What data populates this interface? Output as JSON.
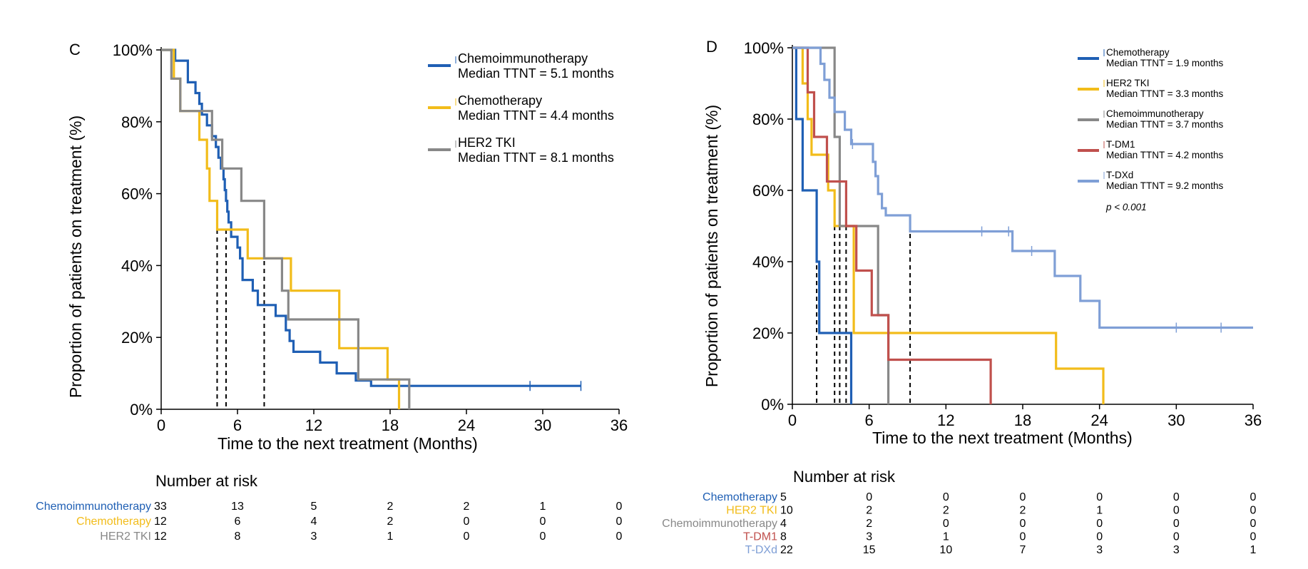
{
  "chart_data": [
    {
      "panel": "C",
      "type": "line",
      "title": "",
      "xlabel": "Time to the next treatment (Months)",
      "ylabel": "Proportion of patients on treatment (%)",
      "xlim": [
        0,
        36
      ],
      "ylim": [
        0,
        100
      ],
      "x_ticks": [
        "0",
        "6",
        "12",
        "18",
        "24",
        "30",
        "36"
      ],
      "y_ticks": [
        "0%",
        "20%",
        "40%",
        "60%",
        "80%",
        "100%"
      ],
      "legend_position": "top-right",
      "series": [
        {
          "name": "Chemoimmunotherapy",
          "median_label": "Median TTNT = 5.1 months",
          "median": 5.1,
          "color": "#1f5fb4",
          "steps": [
            [
              0,
              100
            ],
            [
              1.1,
              100
            ],
            [
              1.1,
              97
            ],
            [
              2.1,
              97
            ],
            [
              2.1,
              91
            ],
            [
              2.7,
              91
            ],
            [
              2.7,
              88
            ],
            [
              3.0,
              88
            ],
            [
              3.0,
              85
            ],
            [
              3.2,
              85
            ],
            [
              3.2,
              82
            ],
            [
              3.6,
              82
            ],
            [
              3.6,
              79
            ],
            [
              4.0,
              79
            ],
            [
              4.0,
              76
            ],
            [
              4.3,
              76
            ],
            [
              4.3,
              73
            ],
            [
              4.5,
              73
            ],
            [
              4.5,
              70
            ],
            [
              4.7,
              70
            ],
            [
              4.7,
              67
            ],
            [
              4.9,
              67
            ],
            [
              4.9,
              64
            ],
            [
              5.0,
              64
            ],
            [
              5.0,
              61
            ],
            [
              5.1,
              61
            ],
            [
              5.1,
              58
            ],
            [
              5.2,
              58
            ],
            [
              5.2,
              55
            ],
            [
              5.3,
              55
            ],
            [
              5.3,
              52
            ],
            [
              5.5,
              52
            ],
            [
              5.5,
              48
            ],
            [
              6.0,
              48
            ],
            [
              6.0,
              45
            ],
            [
              6.2,
              45
            ],
            [
              6.2,
              42
            ],
            [
              6.4,
              42
            ],
            [
              6.4,
              36
            ],
            [
              7.2,
              36
            ],
            [
              7.2,
              33
            ],
            [
              7.6,
              33
            ],
            [
              7.6,
              29
            ],
            [
              9.0,
              29
            ],
            [
              9.0,
              26
            ],
            [
              9.8,
              26
            ],
            [
              9.8,
              22
            ],
            [
              10.1,
              22
            ],
            [
              10.1,
              19
            ],
            [
              10.4,
              19
            ],
            [
              10.4,
              16
            ],
            [
              12.5,
              16
            ],
            [
              12.5,
              13
            ],
            [
              13.8,
              13
            ],
            [
              13.8,
              10
            ],
            [
              15.3,
              10
            ],
            [
              15.3,
              8
            ],
            [
              16.5,
              8
            ],
            [
              16.5,
              6.5
            ],
            [
              33.0,
              6.5
            ]
          ],
          "censor_times": [
            29.0,
            33.0
          ]
        },
        {
          "name": "Chemotherapy",
          "median_label": "Median TTNT = 4.4 months",
          "median": 4.4,
          "color": "#f2bc1a",
          "steps": [
            [
              0,
              100
            ],
            [
              1.0,
              100
            ],
            [
              1.0,
              92
            ],
            [
              1.5,
              92
            ],
            [
              1.5,
              83
            ],
            [
              3.0,
              83
            ],
            [
              3.0,
              75
            ],
            [
              3.6,
              75
            ],
            [
              3.6,
              67
            ],
            [
              3.8,
              67
            ],
            [
              3.8,
              58
            ],
            [
              4.4,
              58
            ],
            [
              4.4,
              50
            ],
            [
              6.8,
              50
            ],
            [
              6.8,
              42
            ],
            [
              10.2,
              42
            ],
            [
              10.2,
              33
            ],
            [
              14.0,
              33
            ],
            [
              14.0,
              17
            ],
            [
              17.8,
              17
            ],
            [
              17.8,
              8.3
            ],
            [
              18.7,
              8.3
            ],
            [
              18.7,
              0
            ]
          ],
          "censor_times": []
        },
        {
          "name": "HER2 TKI",
          "median_label": "Median TTNT = 8.1 months",
          "median": 8.1,
          "color": "#888888",
          "steps": [
            [
              0,
              100
            ],
            [
              0.8,
              100
            ],
            [
              0.8,
              92
            ],
            [
              1.5,
              92
            ],
            [
              1.5,
              83
            ],
            [
              4.0,
              83
            ],
            [
              4.0,
              75
            ],
            [
              4.8,
              75
            ],
            [
              4.8,
              67
            ],
            [
              6.3,
              67
            ],
            [
              6.3,
              58
            ],
            [
              8.1,
              58
            ],
            [
              8.1,
              42
            ],
            [
              9.5,
              42
            ],
            [
              9.5,
              33
            ],
            [
              10.0,
              33
            ],
            [
              10.0,
              25
            ],
            [
              15.5,
              25
            ],
            [
              15.5,
              8.3
            ],
            [
              19.5,
              8.3
            ],
            [
              19.5,
              0
            ]
          ],
          "censor_times": []
        }
      ],
      "risk_table": {
        "title": "Number at risk",
        "rows": [
          {
            "label": "Chemoimmunotherapy",
            "color": "#1f5fb4",
            "values": [
              "33",
              "13",
              "5",
              "2",
              "2",
              "1",
              "0"
            ]
          },
          {
            "label": "Chemotherapy",
            "color": "#f2bc1a",
            "values": [
              "12",
              "6",
              "4",
              "2",
              "0",
              "0",
              "0"
            ]
          },
          {
            "label": "HER2 TKI",
            "color": "#888888",
            "values": [
              "12",
              "8",
              "3",
              "1",
              "0",
              "0",
              "0"
            ]
          }
        ]
      }
    },
    {
      "panel": "D",
      "type": "line",
      "title": "",
      "xlabel": "Time to the next treatment (Months)",
      "ylabel": "Proportion of patients on treatment (%)",
      "xlim": [
        0,
        36
      ],
      "ylim": [
        0,
        100
      ],
      "x_ticks": [
        "0",
        "6",
        "12",
        "18",
        "24",
        "30",
        "36"
      ],
      "y_ticks": [
        "0%",
        "20%",
        "40%",
        "60%",
        "80%",
        "100%"
      ],
      "legend_position": "top-right",
      "annotation": "p < 0.001",
      "series": [
        {
          "name": "Chemotherapy",
          "median_label": "Median TTNT = 1.9 months",
          "median": 1.9,
          "color": "#1f5fb4",
          "steps": [
            [
              0,
              100
            ],
            [
              0.3,
              100
            ],
            [
              0.3,
              80
            ],
            [
              0.8,
              80
            ],
            [
              0.8,
              60
            ],
            [
              1.9,
              60
            ],
            [
              1.9,
              40
            ],
            [
              2.1,
              40
            ],
            [
              2.1,
              20
            ],
            [
              4.6,
              20
            ],
            [
              4.6,
              0
            ]
          ],
          "censor_times": []
        },
        {
          "name": "HER2 TKI",
          "median_label": "Median TTNT = 3.3 months",
          "median": 3.3,
          "color": "#f2bc1a",
          "steps": [
            [
              0,
              100
            ],
            [
              0.8,
              100
            ],
            [
              0.8,
              90
            ],
            [
              1.2,
              90
            ],
            [
              1.2,
              80
            ],
            [
              1.5,
              80
            ],
            [
              1.5,
              70
            ],
            [
              2.8,
              70
            ],
            [
              2.8,
              60
            ],
            [
              3.3,
              60
            ],
            [
              3.3,
              50
            ],
            [
              4.8,
              50
            ],
            [
              4.8,
              20
            ],
            [
              20.6,
              20
            ],
            [
              20.6,
              10
            ],
            [
              24.3,
              10
            ],
            [
              24.3,
              0
            ]
          ],
          "censor_times": []
        },
        {
          "name": "Chemoimmunotherapy",
          "median_label": "Median TTNT = 3.7 months",
          "median": 3.7,
          "color": "#888888",
          "steps": [
            [
              0,
              100
            ],
            [
              3.3,
              100
            ],
            [
              3.3,
              75
            ],
            [
              3.7,
              75
            ],
            [
              3.7,
              50
            ],
            [
              6.7,
              50
            ],
            [
              6.7,
              25
            ],
            [
              7.5,
              25
            ],
            [
              7.5,
              0
            ]
          ],
          "censor_times": []
        },
        {
          "name": "T-DM1",
          "median_label": "Median TTNT = 4.2 months",
          "median": 4.2,
          "color": "#c0504d",
          "steps": [
            [
              0,
              100
            ],
            [
              1.2,
              100
            ],
            [
              1.2,
              87.5
            ],
            [
              1.7,
              87.5
            ],
            [
              1.7,
              75
            ],
            [
              2.7,
              75
            ],
            [
              2.7,
              62.5
            ],
            [
              4.2,
              62.5
            ],
            [
              4.2,
              50
            ],
            [
              5.0,
              50
            ],
            [
              5.0,
              37.5
            ],
            [
              6.2,
              37.5
            ],
            [
              6.2,
              25
            ],
            [
              7.5,
              25
            ],
            [
              7.5,
              12.5
            ],
            [
              15.5,
              12.5
            ],
            [
              15.5,
              0
            ]
          ],
          "censor_times": []
        },
        {
          "name": "T-DXd",
          "median_label": "Median TTNT = 9.2 months",
          "median": 9.2,
          "color": "#7f9fd6",
          "steps": [
            [
              0,
              100
            ],
            [
              2.2,
              100
            ],
            [
              2.2,
              95.5
            ],
            [
              2.5,
              95.5
            ],
            [
              2.5,
              91
            ],
            [
              2.9,
              91
            ],
            [
              2.9,
              86
            ],
            [
              3.3,
              86
            ],
            [
              3.3,
              82
            ],
            [
              4.1,
              82
            ],
            [
              4.1,
              77
            ],
            [
              4.6,
              77
            ],
            [
              4.6,
              73
            ],
            [
              6.3,
              73
            ],
            [
              6.3,
              68
            ],
            [
              6.5,
              68
            ],
            [
              6.5,
              64
            ],
            [
              6.7,
              64
            ],
            [
              6.7,
              59
            ],
            [
              7.0,
              59
            ],
            [
              7.0,
              55
            ],
            [
              7.3,
              55
            ],
            [
              7.3,
              53
            ],
            [
              9.2,
              53
            ],
            [
              9.2,
              48.5
            ],
            [
              17.2,
              48.5
            ],
            [
              17.2,
              43
            ],
            [
              20.5,
              43
            ],
            [
              20.5,
              36
            ],
            [
              22.5,
              36
            ],
            [
              22.5,
              29
            ],
            [
              24.0,
              29
            ],
            [
              24.0,
              21.5
            ],
            [
              36,
              21.5
            ]
          ],
          "censor_times": [
            4.7,
            14.8,
            16.9,
            18.7,
            30.0,
            33.5
          ]
        }
      ],
      "risk_table": {
        "title": "Number at risk",
        "rows": [
          {
            "label": "Chemotherapy",
            "color": "#1f5fb4",
            "values": [
              "5",
              "0",
              "0",
              "0",
              "0",
              "0",
              "0"
            ]
          },
          {
            "label": "HER2 TKI",
            "color": "#f2bc1a",
            "values": [
              "10",
              "2",
              "2",
              "2",
              "1",
              "0",
              "0"
            ]
          },
          {
            "label": "Chemoimmunotherapy",
            "color": "#888888",
            "values": [
              "4",
              "2",
              "0",
              "0",
              "0",
              "0",
              "0"
            ]
          },
          {
            "label": "T-DM1",
            "color": "#c0504d",
            "values": [
              "8",
              "3",
              "1",
              "0",
              "0",
              "0",
              "0"
            ]
          },
          {
            "label": "T-DXd",
            "color": "#7f9fd6",
            "values": [
              "22",
              "15",
              "10",
              "7",
              "3",
              "3",
              "1"
            ]
          }
        ]
      }
    }
  ]
}
